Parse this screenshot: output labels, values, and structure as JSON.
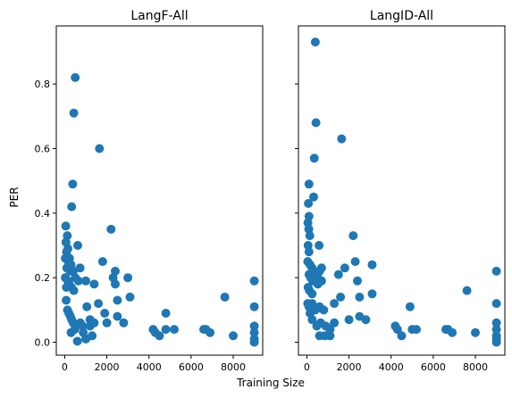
{
  "figure": {
    "shared_xlabel": "Training Size",
    "shared_ylabel": "PER"
  },
  "chart_data": [
    {
      "type": "scatter",
      "title": "LangF-All",
      "xlabel": "Training Size",
      "ylabel": "PER",
      "xlim": [
        -400,
        9400
      ],
      "ylim": [
        -0.04,
        0.98
      ],
      "xticks": [
        0,
        2000,
        4000,
        6000,
        8000
      ],
      "yticks": [
        0.0,
        0.2,
        0.4,
        0.6,
        0.8
      ],
      "ytick_labels": [
        "0.0",
        "0.2",
        "0.4",
        "0.6",
        "0.8"
      ],
      "grid": false,
      "color": "#1f77b4",
      "points": [
        [
          500,
          0.82
        ],
        [
          430,
          0.71
        ],
        [
          380,
          0.49
        ],
        [
          330,
          0.42
        ],
        [
          1650,
          0.6
        ],
        [
          2200,
          0.35
        ],
        [
          50,
          0.36
        ],
        [
          120,
          0.33
        ],
        [
          60,
          0.31
        ],
        [
          150,
          0.29
        ],
        [
          90,
          0.28
        ],
        [
          230,
          0.26
        ],
        [
          30,
          0.26
        ],
        [
          180,
          0.24
        ],
        [
          300,
          0.24
        ],
        [
          620,
          0.3
        ],
        [
          1800,
          0.25
        ],
        [
          100,
          0.23
        ],
        [
          250,
          0.22
        ],
        [
          400,
          0.22
        ],
        [
          500,
          0.2
        ],
        [
          730,
          0.23
        ],
        [
          30,
          0.2
        ],
        [
          150,
          0.19
        ],
        [
          210,
          0.18
        ],
        [
          320,
          0.17
        ],
        [
          430,
          0.16
        ],
        [
          650,
          0.19
        ],
        [
          1000,
          0.19
        ],
        [
          80,
          0.17
        ],
        [
          70,
          0.13
        ],
        [
          1050,
          0.11
        ],
        [
          1400,
          0.18
        ],
        [
          2300,
          0.2
        ],
        [
          2400,
          0.22
        ],
        [
          2400,
          0.18
        ],
        [
          3000,
          0.2
        ],
        [
          2500,
          0.13
        ],
        [
          3100,
          0.14
        ],
        [
          1600,
          0.12
        ],
        [
          130,
          0.1
        ],
        [
          200,
          0.09
        ],
        [
          270,
          0.08
        ],
        [
          330,
          0.07
        ],
        [
          400,
          0.06
        ],
        [
          740,
          0.06
        ],
        [
          850,
          0.05
        ],
        [
          1200,
          0.05
        ],
        [
          1200,
          0.07
        ],
        [
          1400,
          0.06
        ],
        [
          1900,
          0.09
        ],
        [
          2000,
          0.06
        ],
        [
          2500,
          0.08
        ],
        [
          2800,
          0.06
        ],
        [
          480,
          0.04
        ],
        [
          300,
          0.03
        ],
        [
          600,
          0.003
        ],
        [
          880,
          0.03
        ],
        [
          1000,
          0.01
        ],
        [
          1300,
          0.02
        ],
        [
          4200,
          0.04
        ],
        [
          4300,
          0.03
        ],
        [
          4500,
          0.02
        ],
        [
          4800,
          0.09
        ],
        [
          4800,
          0.04
        ],
        [
          5200,
          0.04
        ],
        [
          6600,
          0.04
        ],
        [
          6700,
          0.04
        ],
        [
          6900,
          0.03
        ],
        [
          7600,
          0.14
        ],
        [
          8000,
          0.02
        ],
        [
          9000,
          0.19
        ],
        [
          9000,
          0.11
        ],
        [
          9000,
          0.05
        ],
        [
          9000,
          0.03
        ],
        [
          9000,
          0.01
        ],
        [
          9000,
          0.0
        ]
      ]
    },
    {
      "type": "scatter",
      "title": "LangID-All",
      "xlabel": "Training Size",
      "ylabel": "PER",
      "xlim": [
        -400,
        9400
      ],
      "ylim": [
        -0.04,
        0.98
      ],
      "xticks": [
        0,
        2000,
        4000,
        6000,
        8000
      ],
      "yticks": [
        0.0,
        0.2,
        0.4,
        0.6,
        0.8
      ],
      "shared_y": true,
      "grid": false,
      "color": "#1f77b4",
      "points": [
        [
          400,
          0.93
        ],
        [
          430,
          0.68
        ],
        [
          350,
          0.57
        ],
        [
          1650,
          0.63
        ],
        [
          100,
          0.49
        ],
        [
          320,
          0.45
        ],
        [
          70,
          0.43
        ],
        [
          100,
          0.39
        ],
        [
          50,
          0.37
        ],
        [
          90,
          0.35
        ],
        [
          140,
          0.33
        ],
        [
          60,
          0.3
        ],
        [
          580,
          0.3
        ],
        [
          100,
          0.28
        ],
        [
          2200,
          0.33
        ],
        [
          40,
          0.25
        ],
        [
          150,
          0.24
        ],
        [
          250,
          0.23
        ],
        [
          330,
          0.22
        ],
        [
          400,
          0.21
        ],
        [
          520,
          0.2
        ],
        [
          700,
          0.23
        ],
        [
          600,
          0.22
        ],
        [
          100,
          0.21
        ],
        [
          180,
          0.2
        ],
        [
          280,
          0.19
        ],
        [
          400,
          0.19
        ],
        [
          520,
          0.18
        ],
        [
          700,
          0.19
        ],
        [
          1800,
          0.23
        ],
        [
          2300,
          0.25
        ],
        [
          2400,
          0.19
        ],
        [
          3100,
          0.24
        ],
        [
          1500,
          0.21
        ],
        [
          60,
          0.17
        ],
        [
          120,
          0.16
        ],
        [
          250,
          0.15
        ],
        [
          1600,
          0.14
        ],
        [
          2500,
          0.14
        ],
        [
          3100,
          0.15
        ],
        [
          40,
          0.12
        ],
        [
          100,
          0.11
        ],
        [
          150,
          0.09
        ],
        [
          250,
          0.12
        ],
        [
          400,
          0.1
        ],
        [
          600,
          0.11
        ],
        [
          800,
          0.1
        ],
        [
          1300,
          0.12
        ],
        [
          1300,
          0.06
        ],
        [
          1100,
          0.04
        ],
        [
          900,
          0.05
        ],
        [
          650,
          0.06
        ],
        [
          250,
          0.07
        ],
        [
          470,
          0.05
        ],
        [
          2000,
          0.07
        ],
        [
          2500,
          0.08
        ],
        [
          2800,
          0.07
        ],
        [
          600,
          0.02
        ],
        [
          850,
          0.02
        ],
        [
          1100,
          0.02
        ],
        [
          4200,
          0.05
        ],
        [
          4300,
          0.04
        ],
        [
          4500,
          0.02
        ],
        [
          4900,
          0.11
        ],
        [
          5000,
          0.04
        ],
        [
          5200,
          0.04
        ],
        [
          6600,
          0.04
        ],
        [
          6700,
          0.04
        ],
        [
          6900,
          0.03
        ],
        [
          7600,
          0.16
        ],
        [
          8000,
          0.03
        ],
        [
          9000,
          0.22
        ],
        [
          9000,
          0.12
        ],
        [
          9000,
          0.06
        ],
        [
          9000,
          0.04
        ],
        [
          9000,
          0.02
        ],
        [
          9000,
          0.01
        ],
        [
          9000,
          0.0
        ]
      ]
    }
  ]
}
